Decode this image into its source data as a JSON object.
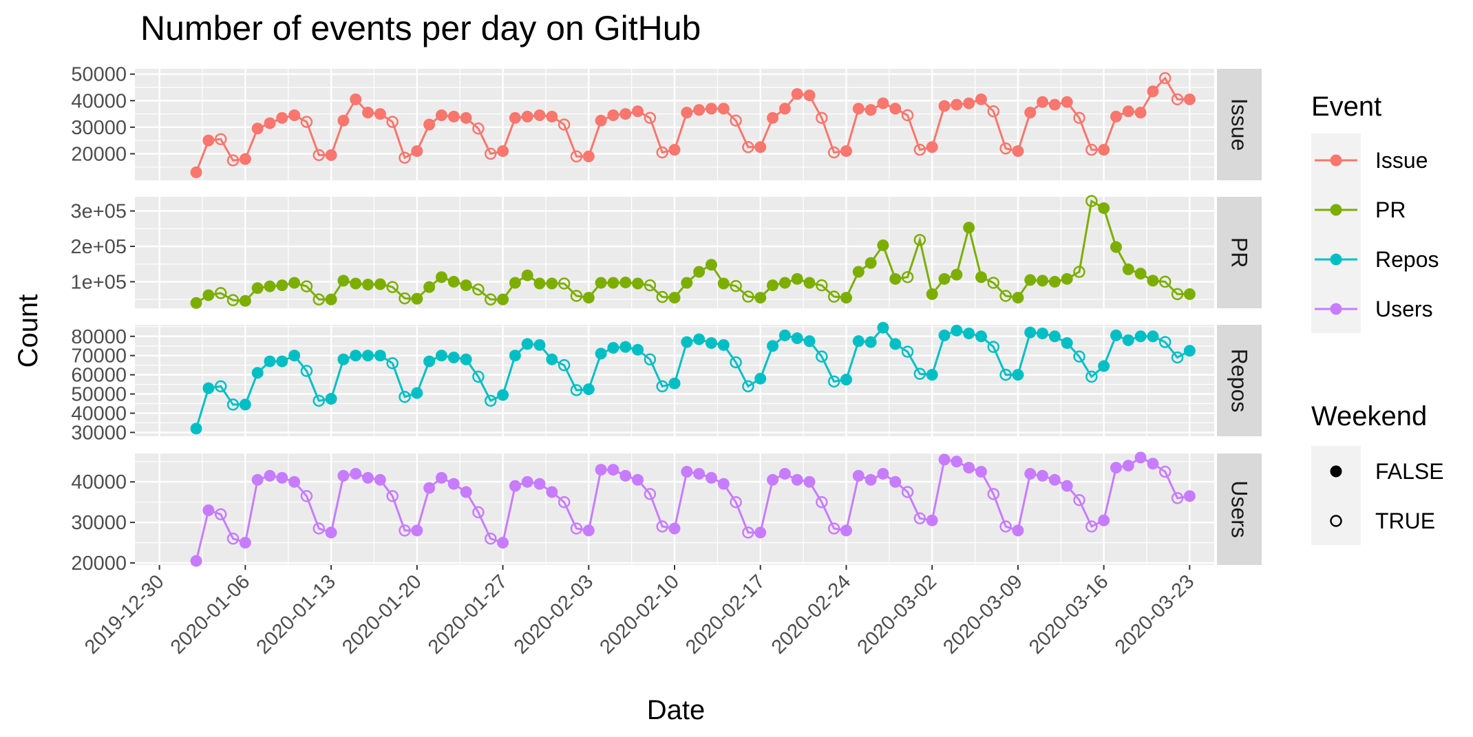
{
  "chart_data": {
    "type": "line",
    "title": "Number of events per day on GitHub",
    "xlabel": "Date",
    "ylabel": "Count",
    "x_start": "2020-01-02",
    "x_ticks": [
      "2019-12-30",
      "2020-01-06",
      "2020-01-13",
      "2020-01-20",
      "2020-01-27",
      "2020-02-03",
      "2020-02-10",
      "2020-02-17",
      "2020-02-24",
      "2020-03-02",
      "2020-03-09",
      "2020-03-16",
      "2020-03-23"
    ],
    "xlim": [
      "2019-12-28",
      "2020-03-25"
    ],
    "grid": true,
    "facets": [
      "Issue",
      "PR",
      "Repos",
      "Users"
    ],
    "legend": {
      "placement": "right",
      "event_title": "Event",
      "weekend_title": "Weekend",
      "weekend_entries": [
        "FALSE",
        "TRUE"
      ]
    },
    "series": [
      {
        "name": "Issue",
        "color": "#F8766D",
        "ylim": [
          10000,
          52000
        ],
        "y_ticks": [
          20000,
          30000,
          40000,
          50000
        ],
        "y_tick_labels": [
          "20000",
          "30000",
          "40000",
          "50000"
        ],
        "values": [
          13000,
          25000,
          25500,
          17500,
          18000,
          29500,
          31500,
          33500,
          34500,
          32000,
          19500,
          19500,
          32500,
          40500,
          35500,
          35000,
          32000,
          18500,
          21000,
          31000,
          34500,
          34000,
          33500,
          29500,
          20000,
          21000,
          33500,
          34000,
          34500,
          34000,
          31000,
          19000,
          19000,
          32500,
          34500,
          35000,
          36000,
          33500,
          20500,
          21500,
          35500,
          36500,
          37000,
          37000,
          32500,
          22500,
          22500,
          33500,
          37000,
          42500,
          42000,
          33500,
          20500,
          21000,
          37000,
          36500,
          39000,
          37000,
          34500,
          21500,
          22500,
          38000,
          38500,
          39000,
          40500,
          36000,
          22000,
          21000,
          35500,
          39500,
          38500,
          39500,
          33500,
          21500,
          21500,
          34000,
          36000,
          35500,
          43500,
          48500,
          40500,
          40500
        ]
      },
      {
        "name": "PR",
        "color": "#7CAE00",
        "ylim": [
          25000,
          340000
        ],
        "y_ticks": [
          100000,
          200000,
          300000
        ],
        "y_tick_labels": [
          "1e+05",
          "2e+05",
          "3e+05"
        ],
        "values": [
          40000,
          62000,
          68000,
          48000,
          46000,
          82000,
          87000,
          90000,
          97000,
          87000,
          50000,
          50000,
          103000,
          95000,
          92000,
          93000,
          85000,
          53000,
          52000,
          85000,
          113000,
          100000,
          90000,
          78000,
          50000,
          50000,
          97000,
          118000,
          95000,
          95000,
          95000,
          60000,
          55000,
          97000,
          97000,
          98000,
          95000,
          90000,
          57000,
          55000,
          97000,
          128000,
          148000,
          95000,
          88000,
          58000,
          55000,
          90000,
          97000,
          108000,
          97000,
          90000,
          58000,
          55000,
          128000,
          153000,
          203000,
          108000,
          113000,
          218000,
          65000,
          108000,
          120000,
          253000,
          113000,
          97000,
          60000,
          55000,
          105000,
          103000,
          100000,
          108000,
          128000,
          328000,
          308000,
          198000,
          135000,
          123000,
          103000,
          100000,
          65000,
          65000
        ]
      },
      {
        "name": "Repos",
        "color": "#00BFC4",
        "ylim": [
          28000,
          86000
        ],
        "y_ticks": [
          30000,
          40000,
          50000,
          60000,
          70000,
          80000
        ],
        "y_tick_labels": [
          "30000",
          "40000",
          "50000",
          "60000",
          "70000",
          "80000"
        ],
        "values": [
          32000,
          53000,
          54000,
          44500,
          44500,
          61000,
          67000,
          67000,
          70000,
          62000,
          46500,
          47500,
          68000,
          70000,
          70000,
          70000,
          66000,
          48500,
          50500,
          67000,
          70000,
          69000,
          68000,
          59000,
          46500,
          49500,
          70000,
          76000,
          75500,
          68000,
          65000,
          52000,
          52500,
          71000,
          74000,
          74500,
          73000,
          68000,
          54000,
          55500,
          77000,
          78500,
          76500,
          75500,
          66500,
          54000,
          58000,
          75000,
          80500,
          79000,
          77500,
          69500,
          56500,
          57500,
          77500,
          77000,
          84500,
          76000,
          72000,
          60500,
          60000,
          80500,
          83000,
          81500,
          80000,
          74500,
          60000,
          60000,
          82000,
          81500,
          80000,
          76500,
          69500,
          59000,
          64500,
          80500,
          78000,
          80000,
          80000,
          77000,
          69000,
          72500
        ]
      },
      {
        "name": "Users",
        "color": "#C77CFF",
        "ylim": [
          19500,
          47000
        ],
        "y_ticks": [
          20000,
          30000,
          40000
        ],
        "y_tick_labels": [
          "20000",
          "30000",
          "40000"
        ],
        "values": [
          20500,
          33000,
          32000,
          26000,
          25000,
          40500,
          41500,
          41000,
          40000,
          36500,
          28500,
          27500,
          41500,
          42000,
          41000,
          40500,
          36500,
          28000,
          28000,
          38500,
          41000,
          39500,
          37500,
          32500,
          26000,
          25000,
          39000,
          40000,
          39500,
          37500,
          35000,
          28500,
          28000,
          43000,
          43000,
          41500,
          40500,
          37000,
          29000,
          28500,
          42500,
          42000,
          41000,
          39500,
          35000,
          27500,
          27500,
          40500,
          42000,
          40500,
          40000,
          35000,
          28500,
          28000,
          41500,
          40500,
          42000,
          40000,
          37500,
          31000,
          30500,
          45500,
          45000,
          43500,
          42500,
          37000,
          29000,
          28000,
          42000,
          41500,
          40500,
          39000,
          35500,
          29000,
          30500,
          43500,
          44000,
          46000,
          44500,
          42500,
          36000,
          36500
        ]
      }
    ]
  }
}
